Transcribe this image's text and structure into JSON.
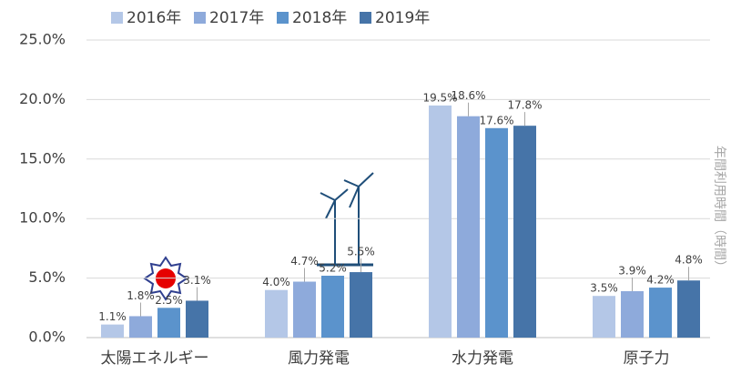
{
  "chart_data": {
    "type": "bar",
    "categories": [
      "太陽エネルギー",
      "風力発電",
      "水力発電",
      "原子力"
    ],
    "series": [
      {
        "name": "2016年",
        "color": "#b4c7e7",
        "values": [
          1.1,
          4.0,
          19.5,
          3.5
        ],
        "value_labels": [
          "1.1%",
          "4.0%",
          "19.5%",
          "3.5%"
        ]
      },
      {
        "name": "2017年",
        "color": "#8eaadb",
        "values": [
          1.8,
          4.7,
          18.6,
          3.9
        ],
        "value_labels": [
          "1.8%",
          "4.7%",
          "18.6%",
          "3.9%"
        ]
      },
      {
        "name": "2018年",
        "color": "#5b93cc",
        "values": [
          2.5,
          5.2,
          17.6,
          4.2
        ],
        "value_labels": [
          "2.5%",
          "5.2%",
          "17.6%",
          "4.2%"
        ]
      },
      {
        "name": "2019年",
        "color": "#4674a8",
        "values": [
          3.1,
          5.5,
          17.8,
          4.8
        ],
        "value_labels": [
          "3.1%",
          "5.5%",
          "17.8%",
          "4.8%"
        ]
      }
    ],
    "ylim": [
      0,
      25
    ],
    "yticks": [
      {
        "value": 0,
        "label": "0.0%"
      },
      {
        "value": 5,
        "label": "5.0%"
      },
      {
        "value": 10,
        "label": "10.0%"
      },
      {
        "value": 15,
        "label": "15.0%"
      },
      {
        "value": 20,
        "label": "20.0%"
      },
      {
        "value": 25,
        "label": "25.0%"
      }
    ],
    "grid": true,
    "annotation": "年間利用時間（時間）"
  }
}
